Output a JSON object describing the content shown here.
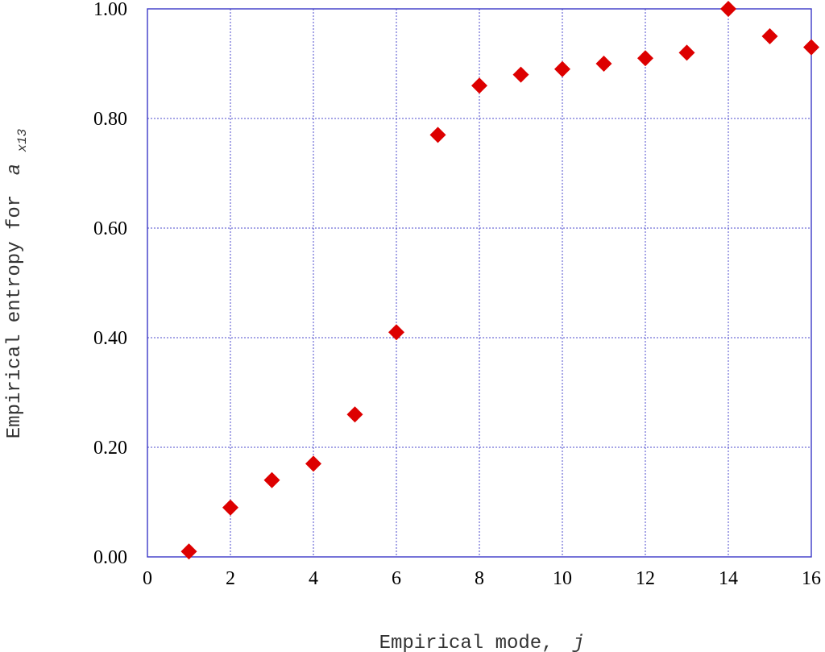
{
  "chart_data": {
    "type": "scatter",
    "title": "",
    "xlabel": "Empirical mode,",
    "xlabel_var": "j",
    "ylabel": "Empirical entropy for",
    "ylabel_var": "a",
    "ylabel_sub": "x13",
    "xlim": [
      0,
      16
    ],
    "ylim": [
      0.0,
      1.0
    ],
    "grid": true,
    "marker": "diamond",
    "marker_color": "#dd0000",
    "grid_color": "#3b38c8",
    "xticks": [
      "0",
      "2",
      "4",
      "6",
      "8",
      "10",
      "12",
      "14",
      "16"
    ],
    "yticks": [
      "0.00",
      "0.20",
      "0.40",
      "0.60",
      "0.80",
      "1.00"
    ],
    "x": [
      1,
      2,
      3,
      4,
      5,
      6,
      7,
      8,
      9,
      10,
      11,
      12,
      13,
      14,
      15,
      16
    ],
    "y": [
      0.01,
      0.09,
      0.14,
      0.17,
      0.26,
      0.41,
      0.77,
      0.86,
      0.88,
      0.89,
      0.9,
      0.91,
      0.92,
      1.0,
      0.95,
      0.93
    ]
  }
}
